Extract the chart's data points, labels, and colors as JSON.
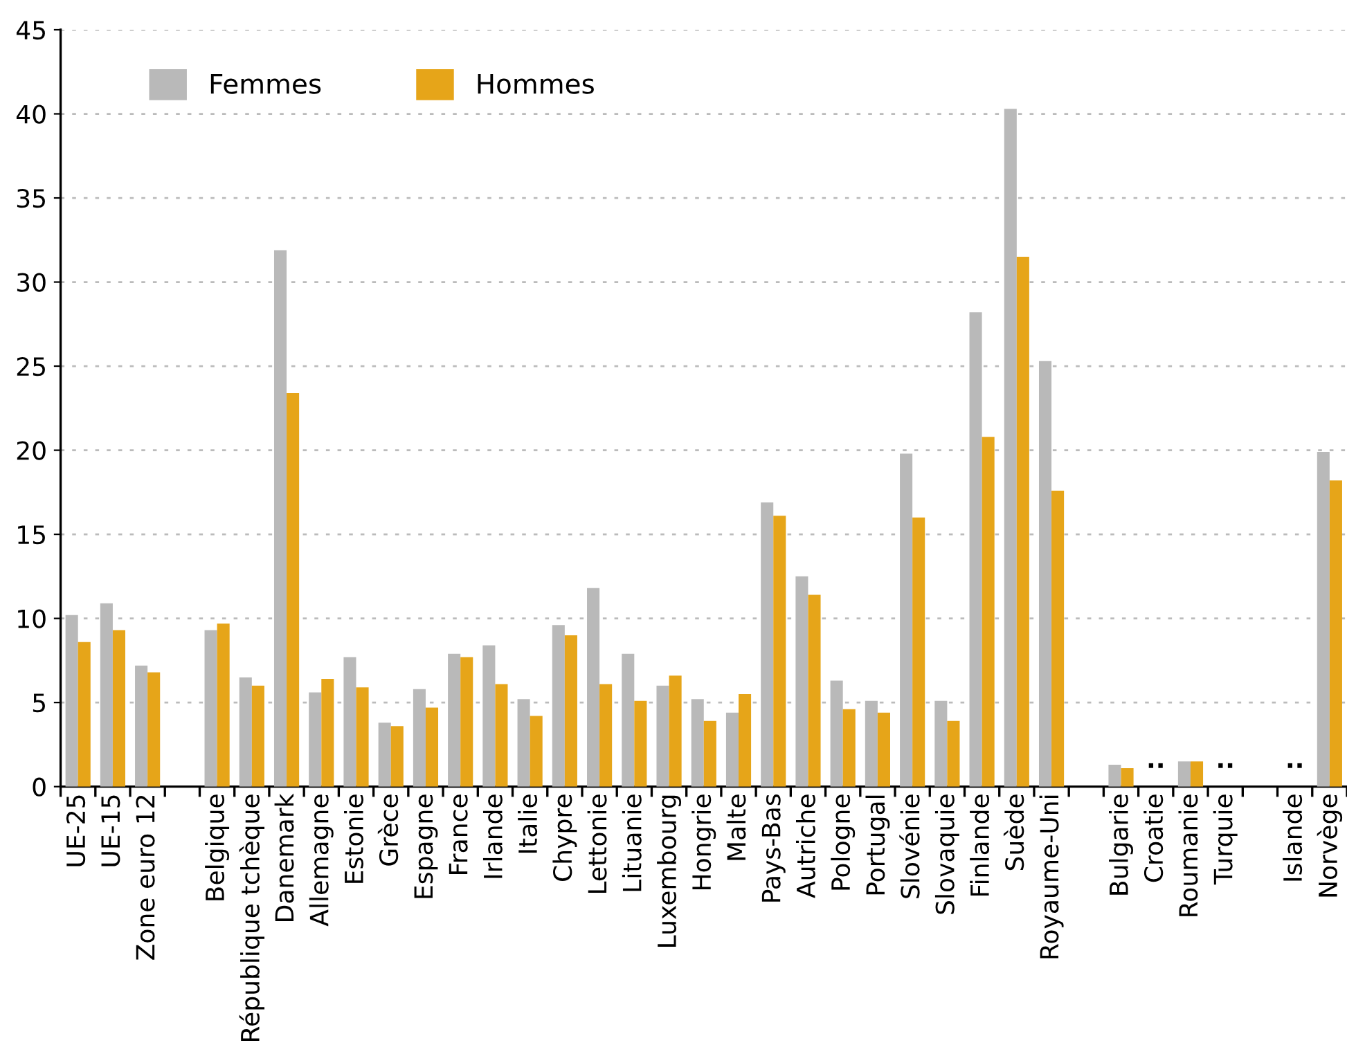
{
  "chart_data": {
    "type": "bar",
    "categories": [
      "UE-25",
      "UE-15",
      "Zone euro 12",
      null,
      "Belgique",
      "République tchèque",
      "Danemark",
      "Allemagne",
      "Estonie",
      "Grèce",
      "Espagne",
      "France",
      "Irlande",
      "Italie",
      "Chypre",
      "Lettonie",
      "Lituanie",
      "Luxembourg",
      "Hongrie",
      "Malte",
      "Pays-Bas",
      "Autriche",
      "Pologne",
      "Portugal",
      "Slovénie",
      "Slovaquie",
      "Finlande",
      "Suède",
      "Royaume-Uni",
      null,
      "Bulgarie",
      "Croatie",
      "Roumanie",
      "Turquie",
      null,
      "Islande",
      "Norvège"
    ],
    "series": [
      {
        "name": "Femmes",
        "color": "#b9b9b9",
        "values": [
          10.2,
          10.9,
          7.2,
          null,
          9.3,
          6.5,
          31.9,
          5.6,
          7.7,
          3.8,
          5.8,
          7.9,
          8.4,
          5.2,
          9.6,
          11.8,
          7.9,
          6.0,
          5.2,
          4.4,
          16.9,
          12.5,
          6.3,
          5.1,
          19.8,
          5.1,
          28.2,
          40.3,
          25.3,
          null,
          1.3,
          null,
          1.5,
          null,
          null,
          null,
          19.9
        ]
      },
      {
        "name": "Hommes",
        "color": "#e6a519",
        "values": [
          8.6,
          9.3,
          6.8,
          null,
          9.7,
          6.0,
          23.4,
          6.4,
          5.9,
          3.6,
          4.7,
          7.7,
          6.1,
          4.2,
          9.0,
          6.1,
          5.1,
          6.6,
          3.9,
          5.5,
          16.1,
          11.4,
          4.6,
          4.4,
          16.0,
          3.9,
          20.8,
          31.5,
          17.6,
          null,
          1.1,
          null,
          1.5,
          null,
          null,
          null,
          18.2
        ]
      }
    ],
    "annotations": [
      "..",
      "..",
      ".."
    ],
    "ylim": [
      0,
      45
    ],
    "yticks": [
      0,
      5,
      10,
      15,
      20,
      25,
      30,
      35,
      40,
      45
    ],
    "grid": "y",
    "legend": "top left"
  }
}
